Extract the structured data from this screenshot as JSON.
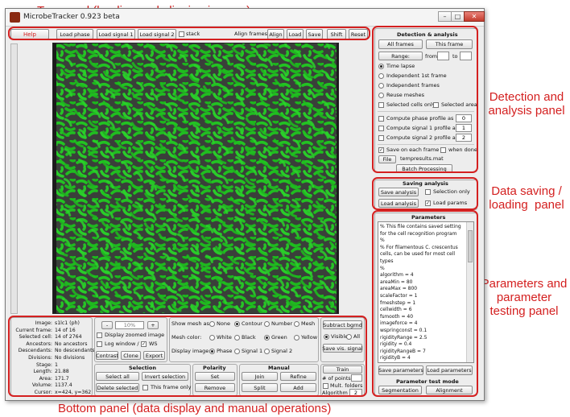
{
  "annotations": {
    "top": "Top panel (loading and aligning images)",
    "detection": "Detection and analysis panel",
    "saving": "Data saving / loading  panel",
    "params": "Parameters and parameter testing panel",
    "bottom": "Bottom panel (data display and manual operations)"
  },
  "window": {
    "title": "MicrobeTracker 0.923 beta",
    "accent": "#d42020"
  },
  "top": {
    "help": "Help",
    "load_phase": "Load phase",
    "load_signal1": "Load signal 1",
    "load_signal2": "Load signal 2",
    "stack": "stack",
    "align_frames": "Align frames:",
    "align": "Align",
    "load": "Load",
    "save": "Save",
    "shift": "Shift",
    "reset": "Reset"
  },
  "detection": {
    "title": "Detection & analysis",
    "all_frames": "All frames",
    "this_frame": "This frame",
    "range": "Range:",
    "from": "from",
    "to": "to",
    "time_lapse": "Time lapse",
    "indep_first": "Independent 1st frame",
    "indep_frames": "Independent frames",
    "reuse_meshes": "Reuse meshes",
    "selected_cells_only": "Selected cells only",
    "selected_area": "Selected area",
    "compute_phase": "Compute phase profile as",
    "compute_phase_val": "0",
    "compute_s1": "Compute signal 1 profile as",
    "compute_s1_val": "1",
    "compute_s2": "Compute signal 2 profile as",
    "compute_s2_val": "2",
    "save_each": "Save on each frame /",
    "when_done": "when done",
    "file": "File",
    "file_name": "tempresults.mat",
    "batch": "Batch Processing"
  },
  "saving": {
    "title": "Saving analysis",
    "save_analysis": "Save analysis",
    "selection_only": "Selection only",
    "load_analysis": "Load analysis",
    "load_params": "Load params"
  },
  "params": {
    "title": "Parameters",
    "lines": [
      "% This file contains saved setting",
      "for the cell recognition program",
      "%",
      "% For filamentous C. crescentus",
      "cells, can be used for most cell",
      "types",
      "%",
      "algorithm = 4",
      "areaMin = 80",
      "areaMax = 800",
      "scaleFactor = 1",
      "fmeshstep = 1",
      "cellwidth = 6",
      "fsmooth = 40",
      "imageforce = 4",
      "wspringconst = 0.1",
      "rigidityRange = 2.5",
      "rigidity = 0.4",
      "rigidityRangeB = 7",
      "rigidityB = 4"
    ],
    "save_parameters": "Save parameters",
    "load_parameters": "Load parameters",
    "test_mode": "Parameter test mode",
    "segmentation": "Segmentation",
    "alignment": "Alignment"
  },
  "info": {
    "labels": [
      "Image:",
      "Current frame:",
      "Selected cell:",
      "Ancestors:",
      "Descendants:",
      "Divisions:",
      "Stage:",
      "Length:",
      "Area:",
      "Volume:",
      "Cursor:"
    ],
    "values": [
      "s1lc1 (ph)",
      "14 of 16",
      "14 of 2764",
      "No ancestors",
      "No descendants",
      "No divisions",
      "1",
      "21.88",
      "171.7",
      "1137.4",
      "x=424, y=362"
    ]
  },
  "display": {
    "minus": "-",
    "zoom": "10%",
    "plus": "+",
    "display_zoomed": "Display zoomed image",
    "log_window": "Log window /",
    "ws": "WS",
    "contrast": "Contrast",
    "clone": "Clone",
    "export": "Export"
  },
  "mesh": {
    "show_as": "Show mesh as:",
    "none": "None",
    "contour": "Contour",
    "number": "Number",
    "mesh": "Mesh",
    "color": "Mesh color:",
    "white": "White",
    "black": "Black",
    "green": "Green",
    "yellow": "Yellow",
    "display_image": "Display image:",
    "phase": "Phase",
    "signal1": "Signal 1",
    "signal2": "Signal 2"
  },
  "bgrnd": {
    "subtract": "Subtract bgrnd",
    "visible": "Visible",
    "all": "All",
    "save_vis": "Save vis. signal"
  },
  "selection": {
    "title": "Selection",
    "select_all": "Select all",
    "invert": "Invert selection",
    "delete": "Delete selected",
    "this_frame_only": "This frame only"
  },
  "polarity": {
    "title": "Polarity",
    "set": "Set",
    "remove": "Remove"
  },
  "manual": {
    "title": "Manual",
    "join": "Join",
    "refine": "Refine",
    "split": "Split",
    "add": "Add"
  },
  "train": {
    "train": "Train",
    "num_points": "# of points",
    "mult_folders": "Mult. folders",
    "algorithm": "Algorithm",
    "algorithm_val": "2"
  }
}
